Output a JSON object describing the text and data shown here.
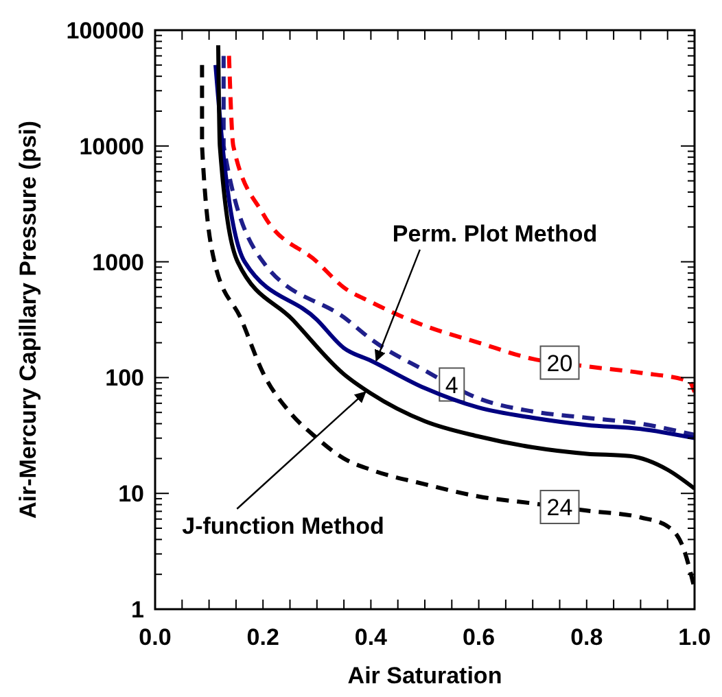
{
  "chart_data": {
    "type": "line",
    "xlabel": "Air Saturation",
    "ylabel": "Air-Mercury Capillary Pressure (psi)",
    "log": "y",
    "grid": false,
    "marker": "none",
    "xlim": [
      0,
      1
    ],
    "xticks": [
      {
        "value": 0,
        "label": "0.0"
      },
      {
        "value": 0.2,
        "label": "0.2"
      },
      {
        "value": 0.4,
        "label": "0.4"
      },
      {
        "value": 0.6,
        "label": "0.6"
      },
      {
        "value": 0.8,
        "label": "0.8"
      },
      {
        "value": 1,
        "label": "1.0"
      }
    ],
    "ylim": [
      1,
      100000
    ],
    "yticks": [
      1,
      10,
      100,
      1000,
      10000,
      100000
    ],
    "series": [
      {
        "name": "20",
        "color": "#ff0000",
        "line_style": "dashed",
        "x": [
          0.137,
          0.145,
          0.2,
          0.3,
          0.35,
          0.4,
          0.5,
          0.6,
          0.7,
          0.8,
          0.9,
          0.99,
          1.0
        ],
        "values": [
          60000,
          10000,
          2600,
          1000,
          600,
          450,
          280,
          200,
          145,
          125,
          110,
          93,
          75
        ]
      },
      {
        "name": "4",
        "color": "#1f1f8a",
        "line_style": "dashed",
        "x": [
          0.127,
          0.127,
          0.2,
          0.356,
          0.4,
          0.5,
          0.6,
          0.7,
          0.8,
          0.9,
          1.0
        ],
        "values": [
          60000,
          10000,
          1000,
          316,
          215,
          115,
          66,
          51,
          45,
          40,
          32
        ]
      },
      {
        "color": "#000080",
        "line_style": "solid",
        "x": [
          0.112,
          0.125,
          0.166,
          0.3,
          0.35,
          0.4,
          0.5,
          0.6,
          0.7,
          0.8,
          0.9,
          1.0
        ],
        "values": [
          50000,
          10000,
          1000,
          316,
          180,
          140,
          81,
          55,
          45,
          39,
          36,
          30
        ]
      },
      {
        "color": "#000000",
        "line_style": "solid",
        "x": [
          0.117,
          0.12,
          0.153,
          0.255,
          0.35,
          0.4,
          0.5,
          0.6,
          0.7,
          0.8,
          0.88,
          0.95,
          1.0
        ],
        "values": [
          74000,
          10000,
          1000,
          316,
          107,
          73,
          42,
          31,
          25,
          22,
          21,
          16,
          11
        ]
      },
      {
        "name": "24",
        "color": "#000000",
        "line_style": "dashed",
        "x": [
          0.087,
          0.087,
          0.11,
          0.16,
          0.2,
          0.25,
          0.3,
          0.35,
          0.4,
          0.5,
          0.6,
          0.7,
          0.8,
          0.9,
          0.95,
          0.98,
          1.0
        ],
        "values": [
          50000,
          10000,
          1000,
          316,
          110,
          50,
          30,
          20,
          16,
          12,
          9.4,
          8.2,
          7.1,
          6.2,
          5.2,
          3.3,
          1.5
        ]
      }
    ],
    "annotations": [
      {
        "text": "Perm. Plot Method",
        "x": 0.41,
        "y": 140
      },
      {
        "text": "J-function Method",
        "x": 0.39,
        "y": 75
      }
    ]
  }
}
